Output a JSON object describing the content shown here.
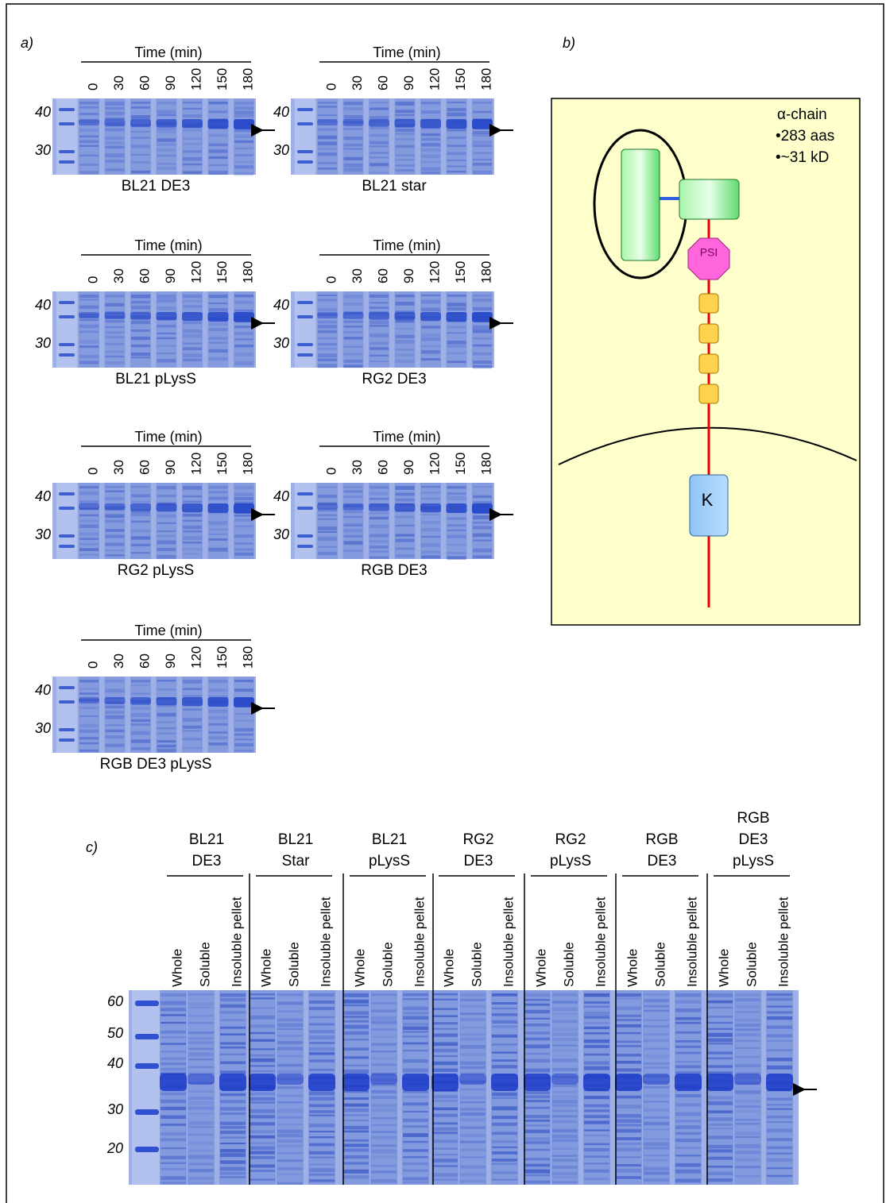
{
  "panel_a": {
    "label": "a)",
    "gels": [
      {
        "header": "Time (min)",
        "lanes": [
          "0",
          "30",
          "60",
          "90",
          "120",
          "150",
          "180"
        ],
        "markers": [
          "40",
          "30"
        ],
        "name": "BL21 DE3"
      },
      {
        "header": "Time (min)",
        "lanes": [
          "0",
          "30",
          "60",
          "90",
          "120",
          "150",
          "180"
        ],
        "markers": [
          "40",
          "30"
        ],
        "name": "BL21 star"
      },
      {
        "header": "Time (min)",
        "lanes": [
          "0",
          "30",
          "60",
          "90",
          "120",
          "150",
          "180"
        ],
        "markers": [
          "40",
          "30"
        ],
        "name": "BL21 pLysS"
      },
      {
        "header": "Time (min)",
        "lanes": [
          "0",
          "30",
          "60",
          "90",
          "120",
          "150",
          "180"
        ],
        "markers": [
          "40",
          "30"
        ],
        "name": "RG2 DE3"
      },
      {
        "header": "Time (min)",
        "lanes": [
          "0",
          "30",
          "60",
          "90",
          "120",
          "150",
          "180"
        ],
        "markers": [
          "40",
          "30"
        ],
        "name": "RG2 pLysS"
      },
      {
        "header": "Time (min)",
        "lanes": [
          "0",
          "30",
          "60",
          "90",
          "120",
          "150",
          "180"
        ],
        "markers": [
          "40",
          "30"
        ],
        "name": "RGB DE3"
      },
      {
        "header": "Time (min)",
        "lanes": [
          "0",
          "30",
          "60",
          "90",
          "120",
          "150",
          "180"
        ],
        "markers": [
          "40",
          "30"
        ],
        "name": "RGB DE3 pLysS"
      }
    ]
  },
  "panel_b": {
    "label": "b)",
    "title": "α-chain",
    "details": [
      "•283 aas",
      "•~31 kD"
    ],
    "psi": "PSI",
    "kinase": "K"
  },
  "panel_c": {
    "label": "c)",
    "markers": [
      "60",
      "50",
      "40",
      "30",
      "20"
    ],
    "groups": [
      {
        "name": [
          "BL21",
          "DE3"
        ],
        "lanes": [
          "Whole",
          "Soluble",
          "Insoluble pellet"
        ]
      },
      {
        "name": [
          "BL21",
          "Star"
        ],
        "lanes": [
          "Whole",
          "Soluble",
          "Insoluble pellet"
        ]
      },
      {
        "name": [
          "BL21",
          "pLysS"
        ],
        "lanes": [
          "Whole",
          "Soluble",
          "Insoluble pellet"
        ]
      },
      {
        "name": [
          "RG2",
          "DE3"
        ],
        "lanes": [
          "Whole",
          "Soluble",
          "Insoluble pellet"
        ]
      },
      {
        "name": [
          "RG2",
          "pLysS"
        ],
        "lanes": [
          "Whole",
          "Soluble",
          "Insoluble pellet"
        ]
      },
      {
        "name": [
          "RGB",
          "DE3"
        ],
        "lanes": [
          "Whole",
          "Soluble",
          "Insoluble pellet"
        ]
      },
      {
        "name": [
          "RGB",
          "DE3",
          "pLysS"
        ],
        "lanes": [
          "Whole",
          "Soluble",
          "Insoluble pellet"
        ]
      }
    ]
  }
}
